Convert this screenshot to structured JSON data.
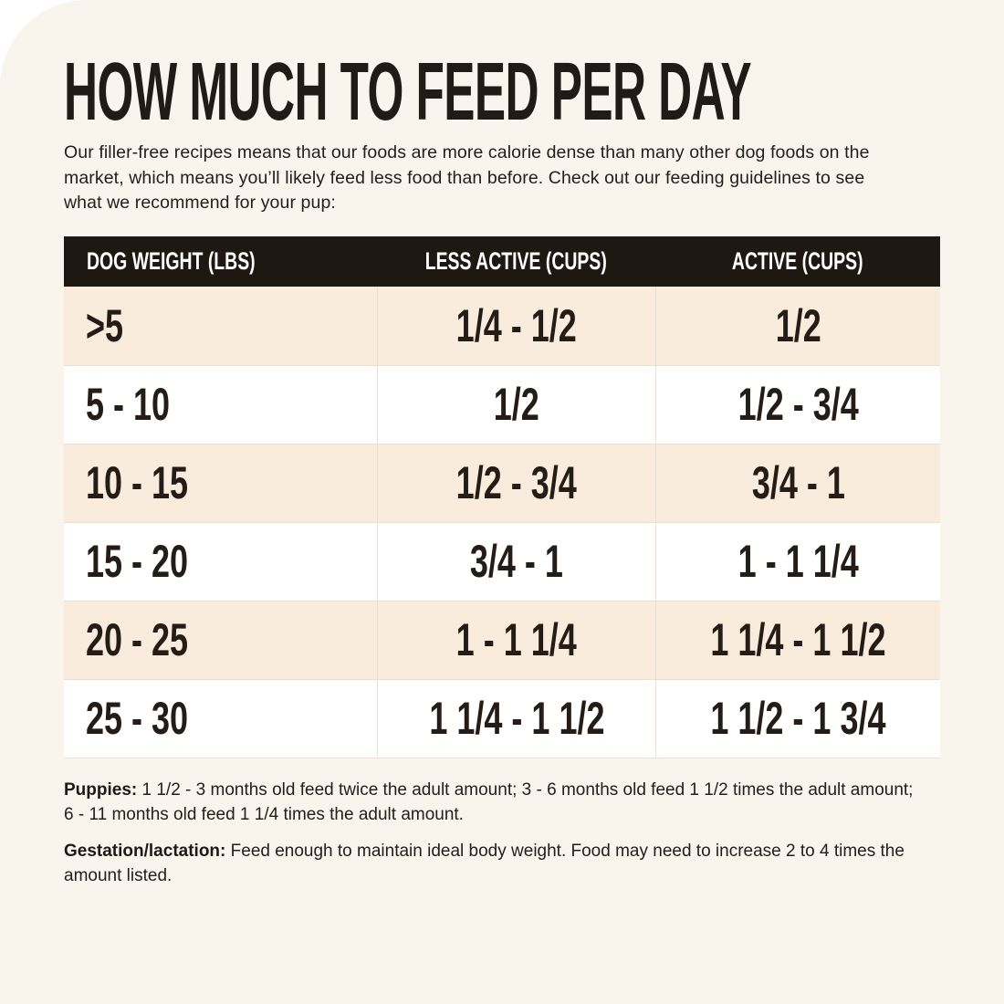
{
  "page": {
    "title": "HOW MUCH TO FEED PER DAY",
    "intro": "Our filler-free recipes means that our foods are more calorie dense than many other dog foods on the market, which means you’ll likely feed less food than before. Check out our feeding guidelines to see what we recommend for your pup:"
  },
  "table": {
    "columns": [
      "DOG WEIGHT (LBS)",
      "LESS ACTIVE (CUPS)",
      "ACTIVE (CUPS)"
    ],
    "rows": [
      {
        "weight": ">5",
        "less_active": "1/4 - 1/2",
        "active": "1/2"
      },
      {
        "weight": "5 - 10",
        "less_active": "1/2",
        "active": "1/2 - 3/4"
      },
      {
        "weight": "10 - 15",
        "less_active": "1/2 - 3/4",
        "active": "3/4 - 1"
      },
      {
        "weight": "15 - 20",
        "less_active": "3/4 - 1",
        "active": "1 - 1 1/4"
      },
      {
        "weight": "20 - 25",
        "less_active": "1 - 1 1/4",
        "active": "1 1/4 - 1 1/2"
      },
      {
        "weight": "25 - 30",
        "less_active": "1 1/4 - 1 1/2",
        "active": "1 1/2 - 1 3/4"
      }
    ]
  },
  "notes": [
    {
      "label": "Puppies:",
      "text": "1 1/2 - 3 months old feed twice the adult amount; 3 - 6 months old feed 1 1/2 times the adult amount; 6 - 11 months old feed 1 1/4 times the adult amount."
    },
    {
      "label": "Gestation/lactation:",
      "text": "Feed enough to maintain ideal body weight. Food may need to increase 2 to 4 times the amount listed."
    }
  ],
  "colors": {
    "card_bg": "#f9f5ec",
    "row_stripe": "#f9ecdc",
    "row_plain": "#ffffff",
    "header_bg": "#1e1813",
    "header_text": "#ffffff",
    "text": "#211d18",
    "divider": "#e6e1d4"
  }
}
